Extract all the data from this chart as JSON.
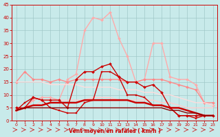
{
  "x": [
    0,
    1,
    2,
    3,
    4,
    5,
    6,
    7,
    8,
    9,
    10,
    11,
    12,
    13,
    14,
    15,
    16,
    17,
    18,
    19,
    20,
    21,
    22,
    23
  ],
  "series": [
    {
      "y": [
        4,
        5,
        8,
        9,
        9,
        8,
        16,
        18,
        35,
        40,
        39,
        42,
        32,
        25,
        15,
        16,
        30,
        30,
        17,
        16,
        16,
        14,
        7,
        6
      ],
      "color": "#ffaaaa",
      "lw": 1.0,
      "marker": "D",
      "ms": 2.0
    },
    {
      "y": [
        15,
        19,
        16,
        16,
        15,
        16,
        15,
        16,
        16,
        16,
        16,
        16,
        16,
        15,
        15,
        16,
        16,
        16,
        15,
        14,
        13,
        12,
        7,
        7
      ],
      "color": "#ff8888",
      "lw": 1.0,
      "marker": "D",
      "ms": 2.0
    },
    {
      "y": [
        4,
        5,
        5,
        8,
        8,
        8,
        8,
        8,
        8,
        9,
        9,
        9,
        8,
        8,
        8,
        8,
        8,
        7,
        7,
        6,
        5,
        5,
        5,
        5
      ],
      "color": "#ffcccc",
      "lw": 1.0,
      "marker": null,
      "ms": 0
    },
    {
      "y": [
        15,
        15,
        15,
        15,
        14,
        14,
        14,
        14,
        13,
        13,
        13,
        13,
        12,
        12,
        12,
        11,
        11,
        10,
        10,
        9,
        8,
        7,
        7,
        6
      ],
      "color": "#ffdddd",
      "lw": 1.0,
      "marker": null,
      "ms": 0
    },
    {
      "y": [
        5,
        5,
        9,
        8,
        8,
        8,
        5,
        16,
        19,
        19,
        21,
        22,
        17,
        15,
        15,
        13,
        14,
        11,
        5,
        2,
        2,
        2,
        2,
        2
      ],
      "color": "#cc0000",
      "lw": 1.0,
      "marker": "D",
      "ms": 2.0
    },
    {
      "y": [
        4,
        7,
        9,
        8,
        5,
        4,
        3,
        3,
        7,
        8,
        19,
        19,
        17,
        10,
        10,
        9,
        6,
        6,
        5,
        2,
        2,
        1,
        2,
        2
      ],
      "color": "#cc0000",
      "lw": 1.0,
      "marker": "s",
      "ms": 2.0
    },
    {
      "y": [
        4,
        5,
        6,
        6,
        7,
        7,
        7,
        7,
        8,
        8,
        8,
        8,
        8,
        8,
        7,
        7,
        6,
        6,
        5,
        5,
        4,
        3,
        2,
        2
      ],
      "color": "#cc0000",
      "lw": 1.8,
      "marker": null,
      "ms": 0
    },
    {
      "y": [
        4,
        5,
        5,
        5,
        5,
        5,
        5,
        5,
        5,
        5,
        5,
        5,
        5,
        5,
        5,
        5,
        5,
        5,
        4,
        4,
        3,
        3,
        2,
        2
      ],
      "color": "#880000",
      "lw": 1.0,
      "marker": null,
      "ms": 0
    }
  ],
  "xlabel": "Vent moyen/en rafales ( km/h )",
  "xlim": [
    -0.5,
    23.5
  ],
  "ylim": [
    0,
    45
  ],
  "yticks": [
    0,
    5,
    10,
    15,
    20,
    25,
    30,
    35,
    40,
    45
  ],
  "xticks": [
    0,
    1,
    2,
    3,
    4,
    5,
    6,
    7,
    8,
    9,
    10,
    11,
    12,
    13,
    14,
    15,
    16,
    17,
    18,
    19,
    20,
    21,
    22,
    23
  ],
  "bg_color": "#c8eaea",
  "grid_color": "#a0c8c8",
  "tick_color": "#cc0000",
  "label_color": "#cc0000"
}
